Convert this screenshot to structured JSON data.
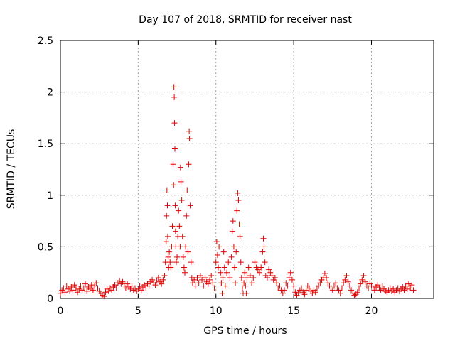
{
  "chart_data": {
    "type": "scatter",
    "title": "Day 107 of 2018, SRMTID for receiver nast",
    "xlabel": "GPS time / hours",
    "ylabel": "SRMTID / TECUs",
    "xlim": [
      0,
      24
    ],
    "ylim": [
      0,
      2.5
    ],
    "xticks": [
      0,
      5,
      10,
      15,
      20
    ],
    "yticks": [
      0,
      0.5,
      1,
      1.5,
      2,
      2.5
    ],
    "xtick_labels": [
      "0",
      "5",
      "10",
      "15",
      "20"
    ],
    "ytick_labels": [
      "0",
      "0.5",
      "1",
      "1.5",
      "2",
      "2.5"
    ],
    "grid": true,
    "marker": "+",
    "series": [
      {
        "name": "nast",
        "color": "#e00000",
        "points": [
          [
            0.0,
            0.05
          ],
          [
            0.1,
            0.08
          ],
          [
            0.2,
            0.1
          ],
          [
            0.3,
            0.06
          ],
          [
            0.4,
            0.12
          ],
          [
            0.5,
            0.09
          ],
          [
            0.6,
            0.07
          ],
          [
            0.7,
            0.11
          ],
          [
            0.8,
            0.08
          ],
          [
            0.9,
            0.13
          ],
          [
            1.0,
            0.1
          ],
          [
            1.1,
            0.06
          ],
          [
            1.2,
            0.09
          ],
          [
            1.3,
            0.12
          ],
          [
            1.4,
            0.08
          ],
          [
            1.5,
            0.1
          ],
          [
            1.6,
            0.14
          ],
          [
            1.7,
            0.07
          ],
          [
            1.8,
            0.11
          ],
          [
            1.9,
            0.09
          ],
          [
            2.0,
            0.13
          ],
          [
            2.1,
            0.08
          ],
          [
            2.2,
            0.12
          ],
          [
            2.3,
            0.15
          ],
          [
            2.4,
            0.1
          ],
          [
            2.5,
            0.07
          ],
          [
            2.6,
            0.05
          ],
          [
            2.7,
            0.03
          ],
          [
            2.8,
            0.02
          ],
          [
            2.9,
            0.06
          ],
          [
            3.0,
            0.09
          ],
          [
            3.1,
            0.07
          ],
          [
            3.2,
            0.1
          ],
          [
            3.3,
            0.08
          ],
          [
            3.4,
            0.11
          ],
          [
            3.5,
            0.13
          ],
          [
            3.6,
            0.1
          ],
          [
            3.7,
            0.15
          ],
          [
            3.8,
            0.17
          ],
          [
            3.9,
            0.14
          ],
          [
            4.0,
            0.16
          ],
          [
            4.1,
            0.12
          ],
          [
            4.2,
            0.1
          ],
          [
            4.3,
            0.14
          ],
          [
            4.4,
            0.11
          ],
          [
            4.5,
            0.09
          ],
          [
            4.6,
            0.12
          ],
          [
            4.7,
            0.08
          ],
          [
            4.8,
            0.1
          ],
          [
            4.9,
            0.07
          ],
          [
            5.0,
            0.09
          ],
          [
            5.1,
            0.12
          ],
          [
            5.2,
            0.08
          ],
          [
            5.3,
            0.11
          ],
          [
            5.4,
            0.13
          ],
          [
            5.5,
            0.1
          ],
          [
            5.6,
            0.14
          ],
          [
            5.7,
            0.12
          ],
          [
            5.8,
            0.16
          ],
          [
            5.9,
            0.18
          ],
          [
            6.0,
            0.15
          ],
          [
            6.1,
            0.13
          ],
          [
            6.2,
            0.17
          ],
          [
            6.3,
            0.2
          ],
          [
            6.4,
            0.16
          ],
          [
            6.5,
            0.14
          ],
          [
            6.6,
            0.18
          ],
          [
            6.7,
            0.22
          ],
          [
            6.75,
            0.35
          ],
          [
            6.8,
            0.55
          ],
          [
            6.82,
            0.8
          ],
          [
            6.85,
            1.05
          ],
          [
            6.88,
            0.9
          ],
          [
            6.9,
            0.6
          ],
          [
            6.93,
            0.4
          ],
          [
            6.96,
            0.3
          ],
          [
            7.0,
            0.45
          ],
          [
            7.05,
            0.35
          ],
          [
            7.1,
            0.3
          ],
          [
            7.15,
            0.5
          ],
          [
            7.2,
            0.7
          ],
          [
            7.25,
            1.3
          ],
          [
            7.28,
            1.1
          ],
          [
            7.3,
            2.05
          ],
          [
            7.32,
            1.95
          ],
          [
            7.34,
            1.7
          ],
          [
            7.36,
            1.45
          ],
          [
            7.38,
            0.9
          ],
          [
            7.4,
            0.65
          ],
          [
            7.42,
            0.5
          ],
          [
            7.45,
            0.35
          ],
          [
            7.5,
            0.4
          ],
          [
            7.55,
            0.6
          ],
          [
            7.6,
            0.85
          ],
          [
            7.65,
            0.7
          ],
          [
            7.7,
            0.5
          ],
          [
            7.72,
            1.27
          ],
          [
            7.75,
            1.13
          ],
          [
            7.8,
            0.95
          ],
          [
            7.85,
            0.6
          ],
          [
            7.9,
            0.4
          ],
          [
            7.95,
            0.3
          ],
          [
            8.0,
            0.25
          ],
          [
            8.05,
            0.5
          ],
          [
            8.1,
            0.8
          ],
          [
            8.15,
            1.05
          ],
          [
            8.2,
            0.45
          ],
          [
            8.25,
            1.3
          ],
          [
            8.28,
            1.62
          ],
          [
            8.3,
            1.55
          ],
          [
            8.35,
            0.9
          ],
          [
            8.4,
            0.35
          ],
          [
            8.45,
            0.2
          ],
          [
            8.5,
            0.15
          ],
          [
            8.6,
            0.18
          ],
          [
            8.7,
            0.12
          ],
          [
            8.8,
            0.2
          ],
          [
            8.9,
            0.15
          ],
          [
            9.0,
            0.22
          ],
          [
            9.1,
            0.18
          ],
          [
            9.2,
            0.12
          ],
          [
            9.3,
            0.2
          ],
          [
            9.4,
            0.16
          ],
          [
            9.5,
            0.14
          ],
          [
            9.6,
            0.18
          ],
          [
            9.7,
            0.22
          ],
          [
            9.8,
            0.15
          ],
          [
            9.9,
            0.1
          ],
          [
            10.0,
            0.35
          ],
          [
            10.05,
            0.55
          ],
          [
            10.1,
            0.42
          ],
          [
            10.15,
            0.3
          ],
          [
            10.2,
            0.5
          ],
          [
            10.3,
            0.25
          ],
          [
            10.35,
            0.15
          ],
          [
            10.4,
            0.05
          ],
          [
            10.45,
            0.2
          ],
          [
            10.5,
            0.45
          ],
          [
            10.55,
            0.3
          ],
          [
            10.6,
            0.12
          ],
          [
            10.7,
            0.25
          ],
          [
            10.8,
            0.35
          ],
          [
            10.9,
            0.2
          ],
          [
            11.0,
            0.4
          ],
          [
            11.05,
            0.65
          ],
          [
            11.1,
            0.75
          ],
          [
            11.15,
            0.5
          ],
          [
            11.2,
            0.3
          ],
          [
            11.25,
            0.15
          ],
          [
            11.3,
            0.45
          ],
          [
            11.35,
            0.85
          ],
          [
            11.4,
            1.02
          ],
          [
            11.45,
            0.95
          ],
          [
            11.5,
            0.72
          ],
          [
            11.55,
            0.6
          ],
          [
            11.6,
            0.35
          ],
          [
            11.65,
            0.2
          ],
          [
            11.7,
            0.1
          ],
          [
            11.75,
            0.05
          ],
          [
            11.8,
            0.15
          ],
          [
            11.85,
            0.25
          ],
          [
            11.9,
            0.12
          ],
          [
            11.95,
            0.05
          ],
          [
            12.0,
            0.2
          ],
          [
            12.1,
            0.3
          ],
          [
            12.2,
            0.22
          ],
          [
            12.3,
            0.15
          ],
          [
            12.4,
            0.2
          ],
          [
            12.5,
            0.35
          ],
          [
            12.6,
            0.3
          ],
          [
            12.7,
            0.28
          ],
          [
            12.8,
            0.25
          ],
          [
            12.9,
            0.3
          ],
          [
            13.0,
            0.45
          ],
          [
            13.05,
            0.58
          ],
          [
            13.1,
            0.5
          ],
          [
            13.15,
            0.35
          ],
          [
            13.2,
            0.22
          ],
          [
            13.3,
            0.2
          ],
          [
            13.4,
            0.28
          ],
          [
            13.5,
            0.25
          ],
          [
            13.6,
            0.22
          ],
          [
            13.7,
            0.18
          ],
          [
            13.8,
            0.2
          ],
          [
            13.9,
            0.15
          ],
          [
            14.0,
            0.1
          ],
          [
            14.1,
            0.12
          ],
          [
            14.2,
            0.08
          ],
          [
            14.3,
            0.05
          ],
          [
            14.4,
            0.08
          ],
          [
            14.5,
            0.15
          ],
          [
            14.6,
            0.12
          ],
          [
            14.7,
            0.2
          ],
          [
            14.8,
            0.25
          ],
          [
            14.9,
            0.18
          ],
          [
            15.0,
            0.12
          ],
          [
            15.1,
            0.06
          ],
          [
            15.2,
            0.03
          ],
          [
            15.3,
            0.05
          ],
          [
            15.4,
            0.08
          ],
          [
            15.5,
            0.1
          ],
          [
            15.6,
            0.06
          ],
          [
            15.7,
            0.04
          ],
          [
            15.8,
            0.08
          ],
          [
            15.9,
            0.12
          ],
          [
            16.0,
            0.1
          ],
          [
            16.1,
            0.07
          ],
          [
            16.2,
            0.05
          ],
          [
            16.3,
            0.08
          ],
          [
            16.4,
            0.06
          ],
          [
            16.5,
            0.1
          ],
          [
            16.6,
            0.12
          ],
          [
            16.7,
            0.15
          ],
          [
            16.8,
            0.18
          ],
          [
            16.9,
            0.2
          ],
          [
            17.0,
            0.24
          ],
          [
            17.1,
            0.2
          ],
          [
            17.2,
            0.15
          ],
          [
            17.3,
            0.12
          ],
          [
            17.4,
            0.1
          ],
          [
            17.5,
            0.08
          ],
          [
            17.6,
            0.12
          ],
          [
            17.7,
            0.15
          ],
          [
            17.8,
            0.1
          ],
          [
            17.9,
            0.08
          ],
          [
            18.0,
            0.05
          ],
          [
            18.1,
            0.1
          ],
          [
            18.2,
            0.15
          ],
          [
            18.3,
            0.18
          ],
          [
            18.4,
            0.22
          ],
          [
            18.5,
            0.16
          ],
          [
            18.6,
            0.12
          ],
          [
            18.7,
            0.08
          ],
          [
            18.8,
            0.05
          ],
          [
            18.9,
            0.03
          ],
          [
            19.0,
            0.04
          ],
          [
            19.1,
            0.06
          ],
          [
            19.2,
            0.1
          ],
          [
            19.3,
            0.14
          ],
          [
            19.4,
            0.18
          ],
          [
            19.5,
            0.22
          ],
          [
            19.6,
            0.16
          ],
          [
            19.7,
            0.12
          ],
          [
            19.8,
            0.1
          ],
          [
            19.9,
            0.14
          ],
          [
            20.0,
            0.12
          ],
          [
            20.1,
            0.1
          ],
          [
            20.2,
            0.08
          ],
          [
            20.3,
            0.11
          ],
          [
            20.4,
            0.13
          ],
          [
            20.5,
            0.1
          ],
          [
            20.6,
            0.08
          ],
          [
            20.7,
            0.12
          ],
          [
            20.8,
            0.09
          ],
          [
            20.9,
            0.07
          ],
          [
            21.0,
            0.06
          ],
          [
            21.1,
            0.08
          ],
          [
            21.2,
            0.1
          ],
          [
            21.3,
            0.07
          ],
          [
            21.4,
            0.09
          ],
          [
            21.5,
            0.06
          ],
          [
            21.6,
            0.08
          ],
          [
            21.7,
            0.1
          ],
          [
            21.8,
            0.07
          ],
          [
            21.9,
            0.09
          ],
          [
            22.0,
            0.11
          ],
          [
            22.1,
            0.08
          ],
          [
            22.2,
            0.12
          ],
          [
            22.3,
            0.09
          ],
          [
            22.4,
            0.14
          ],
          [
            22.5,
            0.1
          ],
          [
            22.6,
            0.13
          ],
          [
            22.7,
            0.08
          ]
        ]
      }
    ]
  }
}
